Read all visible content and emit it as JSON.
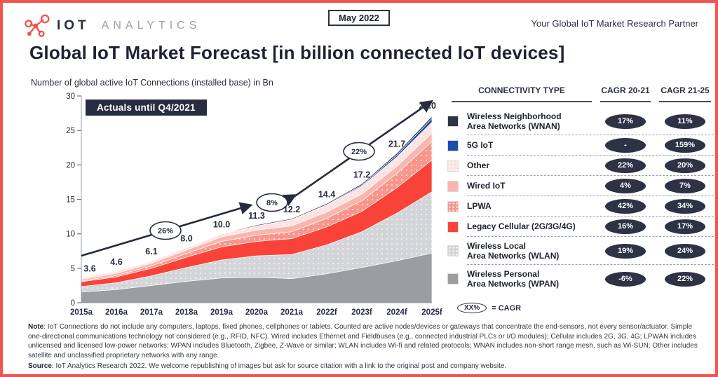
{
  "header": {
    "brand_primary": "IOT",
    "brand_secondary": "ANALYTICS",
    "date_badge": "May 2022",
    "tagline": "Your Global IoT Market Research Partner"
  },
  "title": "Global IoT Market Forecast [in billion connected IoT devices]",
  "subtitle": "Number of global active IoT Connections (installed base) in Bn",
  "chart_data": {
    "type": "area",
    "stacked": true,
    "annotation": "Actuals until Q4/2021",
    "categories": [
      "2015a",
      "2016a",
      "2017a",
      "2018a",
      "2019a",
      "2020a",
      "2021a",
      "2022f",
      "2023f",
      "2024f",
      "2025f"
    ],
    "total_labels": [
      "3.6",
      "4.6",
      "6.1",
      "8.0",
      "10.0",
      "11.3",
      "12.2",
      "14.4",
      "17.2",
      "21.7",
      "27.0"
    ],
    "totals": [
      3.6,
      4.6,
      6.1,
      8.0,
      10.0,
      11.3,
      12.2,
      14.4,
      17.2,
      21.7,
      27.0
    ],
    "ylim": [
      0,
      30
    ],
    "yticks": [
      0,
      5,
      10,
      15,
      20,
      25,
      30
    ],
    "cagr_markers": [
      "26%",
      "8%",
      "22%"
    ],
    "series": [
      {
        "name": "Wireless Personal Area Networks (WPAN)",
        "color": "#9b9da1",
        "dotted": false,
        "values": [
          1.55,
          1.9,
          2.5,
          3.1,
          3.6,
          3.7,
          3.5,
          4.2,
          5.1,
          6.1,
          7.2
        ]
      },
      {
        "name": "Wireless Local Area Networks (WLAN)",
        "color": "#d4d5d8",
        "dotted": true,
        "values": [
          0.8,
          1.0,
          1.4,
          2.0,
          2.6,
          3.1,
          3.5,
          4.2,
          5.2,
          6.9,
          8.9
        ]
      },
      {
        "name": "Legacy Cellular (2G/3G/4G)",
        "color": "#fa4338",
        "dotted": false,
        "values": [
          0.7,
          0.85,
          1.1,
          1.5,
          1.9,
          2.1,
          2.3,
          2.6,
          2.95,
          3.7,
          4.6
        ]
      },
      {
        "name": "LPWA",
        "color": "#f8968c",
        "dotted": true,
        "values": [
          0.1,
          0.2,
          0.35,
          0.55,
          0.8,
          0.9,
          1.0,
          1.25,
          1.55,
          2.05,
          2.7
        ]
      },
      {
        "name": "Wired IoT",
        "color": "#fab5af",
        "dotted": false,
        "values": [
          0.25,
          0.3,
          0.4,
          0.5,
          0.65,
          0.75,
          0.85,
          0.9,
          0.95,
          1.05,
          1.2
        ]
      },
      {
        "name": "Other",
        "color": "#fbe3e1",
        "dotted": true,
        "values": [
          0.2,
          0.3,
          0.3,
          0.3,
          0.4,
          0.6,
          0.9,
          1.0,
          1.15,
          1.35,
          1.6
        ]
      },
      {
        "name": "5G IoT",
        "color": "#1e4cb0",
        "dotted": false,
        "values": [
          0,
          0,
          0,
          0,
          0,
          0.01,
          0.02,
          0.08,
          0.15,
          0.3,
          0.55
        ]
      },
      {
        "name": "Wireless Neighborhood Area Networks (WNAN)",
        "color": "#2e3448",
        "dotted": false,
        "values": [
          0,
          0.05,
          0.05,
          0.05,
          0.05,
          0.13,
          0.13,
          0.17,
          0.2,
          0.25,
          0.3
        ]
      }
    ]
  },
  "table": {
    "headers": {
      "type": "CONNECTIVITY TYPE",
      "cagr1": "CAGR 20-21",
      "cagr2": "CAGR 21-25"
    },
    "rows": [
      {
        "label": "Wireless Neighborhood\nArea Networks (WNAN)",
        "color": "#2e3448",
        "dotted": false,
        "cagr1": "17%",
        "cagr2": "11%"
      },
      {
        "label": "5G IoT",
        "color": "#1e4cb0",
        "dotted": false,
        "cagr1": "-",
        "cagr2": "159%"
      },
      {
        "label": "Other",
        "color": "#fbe3e1",
        "dotted": true,
        "cagr1": "22%",
        "cagr2": "20%"
      },
      {
        "label": "Wired IoT",
        "color": "#fab5af",
        "dotted": false,
        "cagr1": "4%",
        "cagr2": "7%"
      },
      {
        "label": "LPWA",
        "color": "#f8968c",
        "dotted": true,
        "cagr1": "42%",
        "cagr2": "34%"
      },
      {
        "label": "Legacy Cellular (2G/3G/4G)",
        "color": "#fa4338",
        "dotted": false,
        "cagr1": "16%",
        "cagr2": "17%"
      },
      {
        "label": "Wireless Local\nArea Networks (WLAN)",
        "color": "#d4d5d8",
        "dotted": true,
        "cagr1": "19%",
        "cagr2": "24%"
      },
      {
        "label": "Wireless Personal\nArea Networks (WPAN)",
        "color": "#9b9da1",
        "dotted": false,
        "cagr1": "-6%",
        "cagr2": "22%"
      }
    ],
    "cagr_legend": {
      "oval": "XX%",
      "text": "= CAGR"
    }
  },
  "footnotes": {
    "note_label": "Note",
    "note_text": ": IoT Connections do not include any computers, laptops, fixed phones, cellphones or tablets. Counted are active nodes/devices or gateways that concentrate the end-sensors, not every sensor/actuator. Simple one-directional communications technology not considered (e.g., RFID, NFC). Wired includes Ethernet and Fieldbuses (e.g., connected industrial PLCs or I/O modules); Cellular includes 2G, 3G, 4G; LPWAN includes unlicensed and licensed low-power networks; WPAN includes Bluetooth, Zigbee, Z-Wave or similar; WLAN includes Wi-fi and related protocols; WNAN includes non-short range mesh, such as Wi-SUN; Other includes satellite and unclassified proprietary networks with any range.",
    "source_label": "Source",
    "source_text": ": IoT Analytics Research 2022. We welcome republishing of images but ask for source citation with a link to the original post and company website."
  }
}
